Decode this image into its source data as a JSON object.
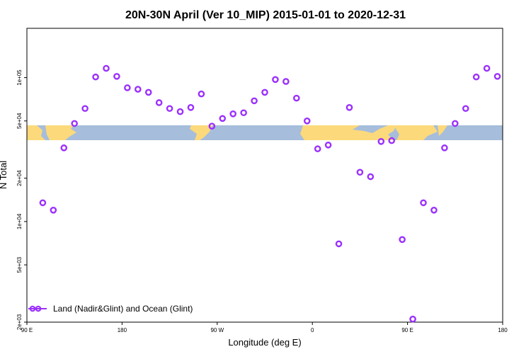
{
  "chart_data": {
    "type": "scatter",
    "title": "20N-30N April (Ver 10_MIP)   2015-01-01 to 2020-12-31",
    "xlabel": "Longitude (deg E)",
    "ylabel": "N Total",
    "yscale": "log",
    "xlim": [
      90,
      540
    ],
    "ylim": [
      2000,
      220000
    ],
    "x_ticks": [
      90,
      180,
      270,
      360,
      450,
      540
    ],
    "x_tick_labels": [
      "90 E",
      "180",
      "90 W",
      "0",
      "90 E",
      "180"
    ],
    "y_ticks": [
      2000,
      5000,
      10000,
      20000,
      50000,
      100000
    ],
    "y_tick_labels": [
      "2e+03",
      "5e+03",
      "1e+04",
      "2e+04",
      "5e+04",
      "1e+05"
    ],
    "marker_color": "#9b30ff",
    "series": [
      {
        "name": "Land (Nadir&Glint) and Ocean (Glint)",
        "x": [
          105,
          115,
          125,
          135,
          145,
          155,
          165,
          175,
          185,
          195,
          205,
          215,
          225,
          235,
          245,
          255,
          265,
          275,
          285,
          295,
          305,
          315,
          325,
          335,
          345,
          355,
          365,
          375,
          385,
          395,
          405,
          415,
          425,
          435,
          445,
          455,
          465,
          475,
          485,
          495,
          505,
          515,
          525,
          535
        ],
        "y": [
          13500,
          12000,
          32500,
          48000,
          61000,
          101000,
          116000,
          102000,
          85000,
          83000,
          79000,
          67000,
          61000,
          58000,
          62000,
          77000,
          46000,
          52000,
          56000,
          57000,
          69000,
          79000,
          97000,
          94000,
          72000,
          50000,
          32000,
          34000,
          7000,
          62000,
          22000,
          20500,
          36000,
          36500,
          7500,
          2100,
          13500,
          12000,
          32500,
          48000,
          61000,
          101000,
          116000,
          102000
        ]
      }
    ],
    "legend": {
      "position": "bottom-left"
    }
  }
}
